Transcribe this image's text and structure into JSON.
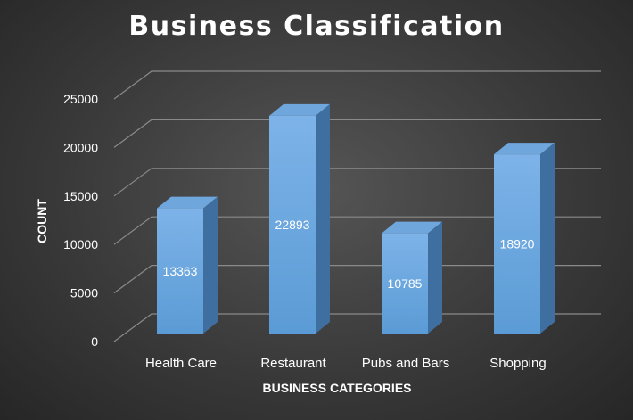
{
  "chart_data": {
    "type": "bar",
    "title": "Business Classification",
    "xlabel": "BUSINESS CATEGORIES",
    "ylabel": "COUNT",
    "categories": [
      "Health Care",
      "Restaurant",
      "Pubs and Bars",
      "Shopping"
    ],
    "values": [
      13363,
      22893,
      10785,
      18920
    ],
    "data_labels": [
      "13363",
      "22893",
      "10785",
      "18920"
    ],
    "ylim": [
      0,
      25000
    ],
    "yticks": [
      0,
      5000,
      10000,
      15000,
      20000,
      25000
    ],
    "ytick_labels": [
      "0",
      "5000",
      "10000",
      "15000",
      "20000",
      "25000"
    ],
    "grid": true,
    "legend": false,
    "style": "3d-column",
    "colors": {
      "background": "#3a3a3a",
      "bar_front": "#5b9bd5",
      "bar_front_light": "#7db3e8",
      "bar_side": "#3f6fa0",
      "bar_top": "#6fa6dc",
      "gridline": "#8a8a8a",
      "text": "#ffffff"
    }
  }
}
